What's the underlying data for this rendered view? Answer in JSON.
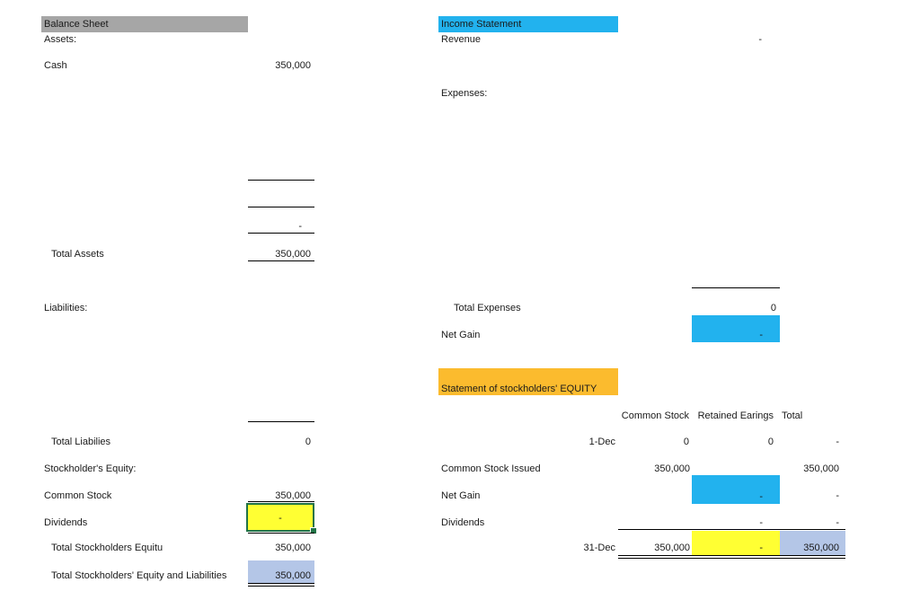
{
  "balance_sheet": {
    "title": "Balance Sheet",
    "assets_label": "Assets:",
    "cash_label": "Cash",
    "cash_value": "350,000",
    "blank_dash": "-",
    "total_assets_label": "Total Assets",
    "total_assets_value": "350,000",
    "liabilities_label": "Liabilities:",
    "total_liabilities_label": "Total Liabilies",
    "total_liabilities_value": "0",
    "equity_label": "Stockholder's Equity:",
    "common_stock_label": "Common Stock",
    "common_stock_value": "350,000",
    "dividends_label": "Dividends",
    "dividends_value": "-",
    "total_equity_label": "Total Stockholders Equitu",
    "total_equity_value": "350,000",
    "total_eq_liab_label": "Total Stockholders' Equity and Liabilities",
    "total_eq_liab_value": "350,000"
  },
  "income_statement": {
    "title": "Income Statement",
    "revenue_label": "Revenue",
    "revenue_value": "-",
    "expenses_label": "Expenses:",
    "total_expenses_label": "Total Expenses",
    "total_expenses_value": "0",
    "net_gain_label": "Net Gain",
    "net_gain_value": "-"
  },
  "equity_statement": {
    "title": "Statement of stockholders' EQUITY",
    "col_common_stock": "Common Stock",
    "col_retained": "Retained Earings",
    "col_total": "Total",
    "dec1_label": "1-Dec",
    "dec1_cs": "0",
    "dec1_re": "0",
    "dec1_total": "-",
    "issued_label": "Common Stock Issued",
    "issued_cs": "350,000",
    "issued_total": "350,000",
    "net_gain_label": "Net Gain",
    "net_gain_re": "-",
    "net_gain_total": "-",
    "dividends_label": "Dividends",
    "dividends_re": "-",
    "dividends_total": "-",
    "dec31_label": "31-Dec",
    "dec31_cs": "350,000",
    "dec31_re": "-",
    "dec31_total": "350,000"
  },
  "colors": {
    "balance_header": "#a6a6a6",
    "income_header": "#22b2ee",
    "equity_header": "#fbbb2e",
    "highlight_yellow": "#ffff33",
    "highlight_blue": "#b4c6e7",
    "selection_border": "#217346"
  }
}
